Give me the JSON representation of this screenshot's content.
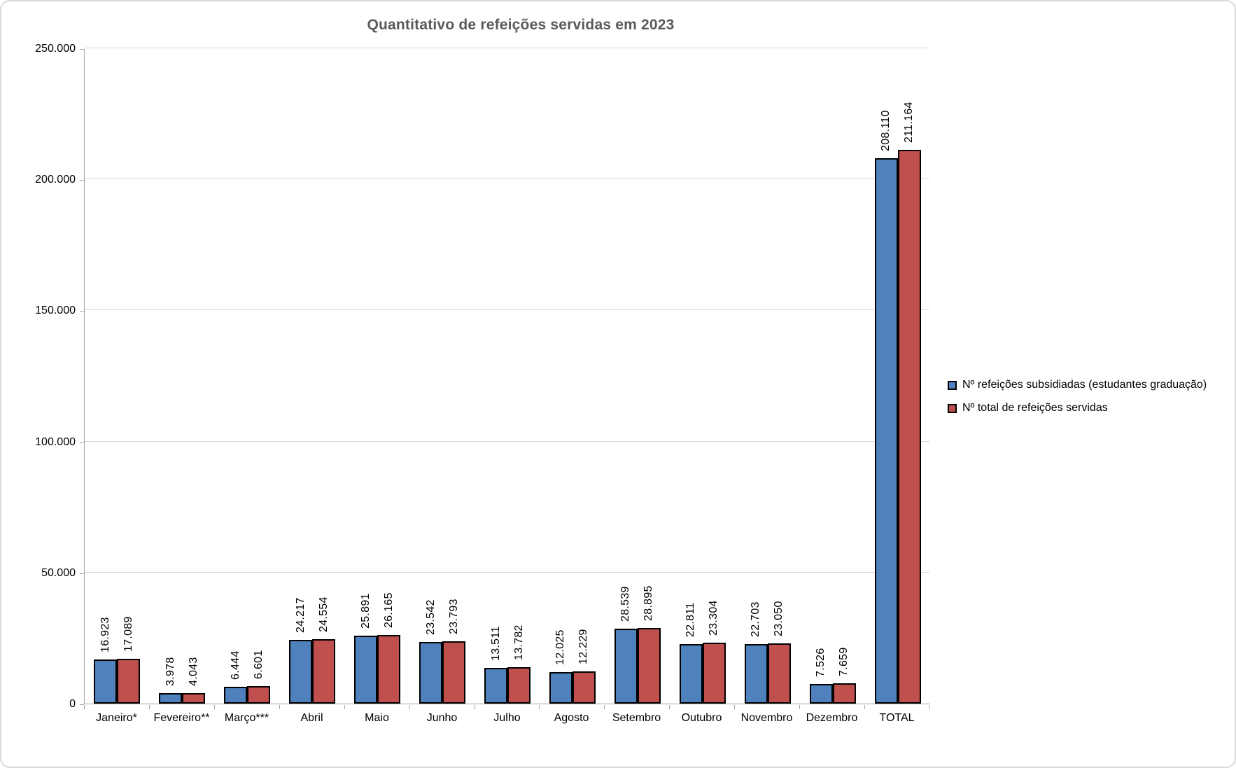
{
  "chart_data": {
    "type": "bar",
    "title": "Quantitativo de refeições servidas em 2023",
    "categories": [
      "Janeiro*",
      "Fevereiro**",
      "Março***",
      "Abril",
      "Maio",
      "Junho",
      "Julho",
      "Agosto",
      "Setembro",
      "Outubro",
      "Novembro",
      "Dezembro",
      "TOTAL"
    ],
    "series": [
      {
        "name": "Nº refeições subsidiadas (estudantes graduação)",
        "color": "#4F81BD",
        "border_color": "#000000",
        "values": [
          16923,
          3978,
          6444,
          24217,
          25891,
          23542,
          13511,
          12025,
          28539,
          22811,
          22703,
          7526,
          208110
        ],
        "data_labels": [
          "16.923",
          "3.978",
          "6.444",
          "24.217",
          "25.891",
          "23.542",
          "13.511",
          "12.025",
          "28.539",
          "22.811",
          "22.703",
          "7.526",
          "208.110"
        ]
      },
      {
        "name": "Nº total de refeições servidas",
        "color": "#C0504D",
        "border_color": "#000000",
        "values": [
          17089,
          4043,
          6601,
          24554,
          26165,
          23793,
          13782,
          12229,
          28895,
          23304,
          23050,
          7659,
          211164
        ],
        "data_labels": [
          "17.089",
          "4.043",
          "6.601",
          "24.554",
          "26.165",
          "23.793",
          "13.782",
          "12.229",
          "28.895",
          "23.304",
          "23.050",
          "7.659",
          "211.164"
        ]
      }
    ],
    "y_axis": {
      "min": 0,
      "max": 250000,
      "step": 50000,
      "tick_labels": [
        "0",
        "50.000",
        "100.000",
        "150.000",
        "200.000",
        "250.000"
      ]
    },
    "x_axis": {
      "tick_labels_rotation": 0
    },
    "data_label_rotation": -90,
    "grid": true,
    "legend_position": "right",
    "colors": {
      "title_text": "#595959",
      "series1": "#4F81BD",
      "series2": "#C0504D",
      "bar_border": "#000000",
      "gridline": "#D6D6D6",
      "axis_line": "#A6A6A6",
      "label_text": "#000000",
      "chart_border": "#D9D9D9"
    }
  }
}
